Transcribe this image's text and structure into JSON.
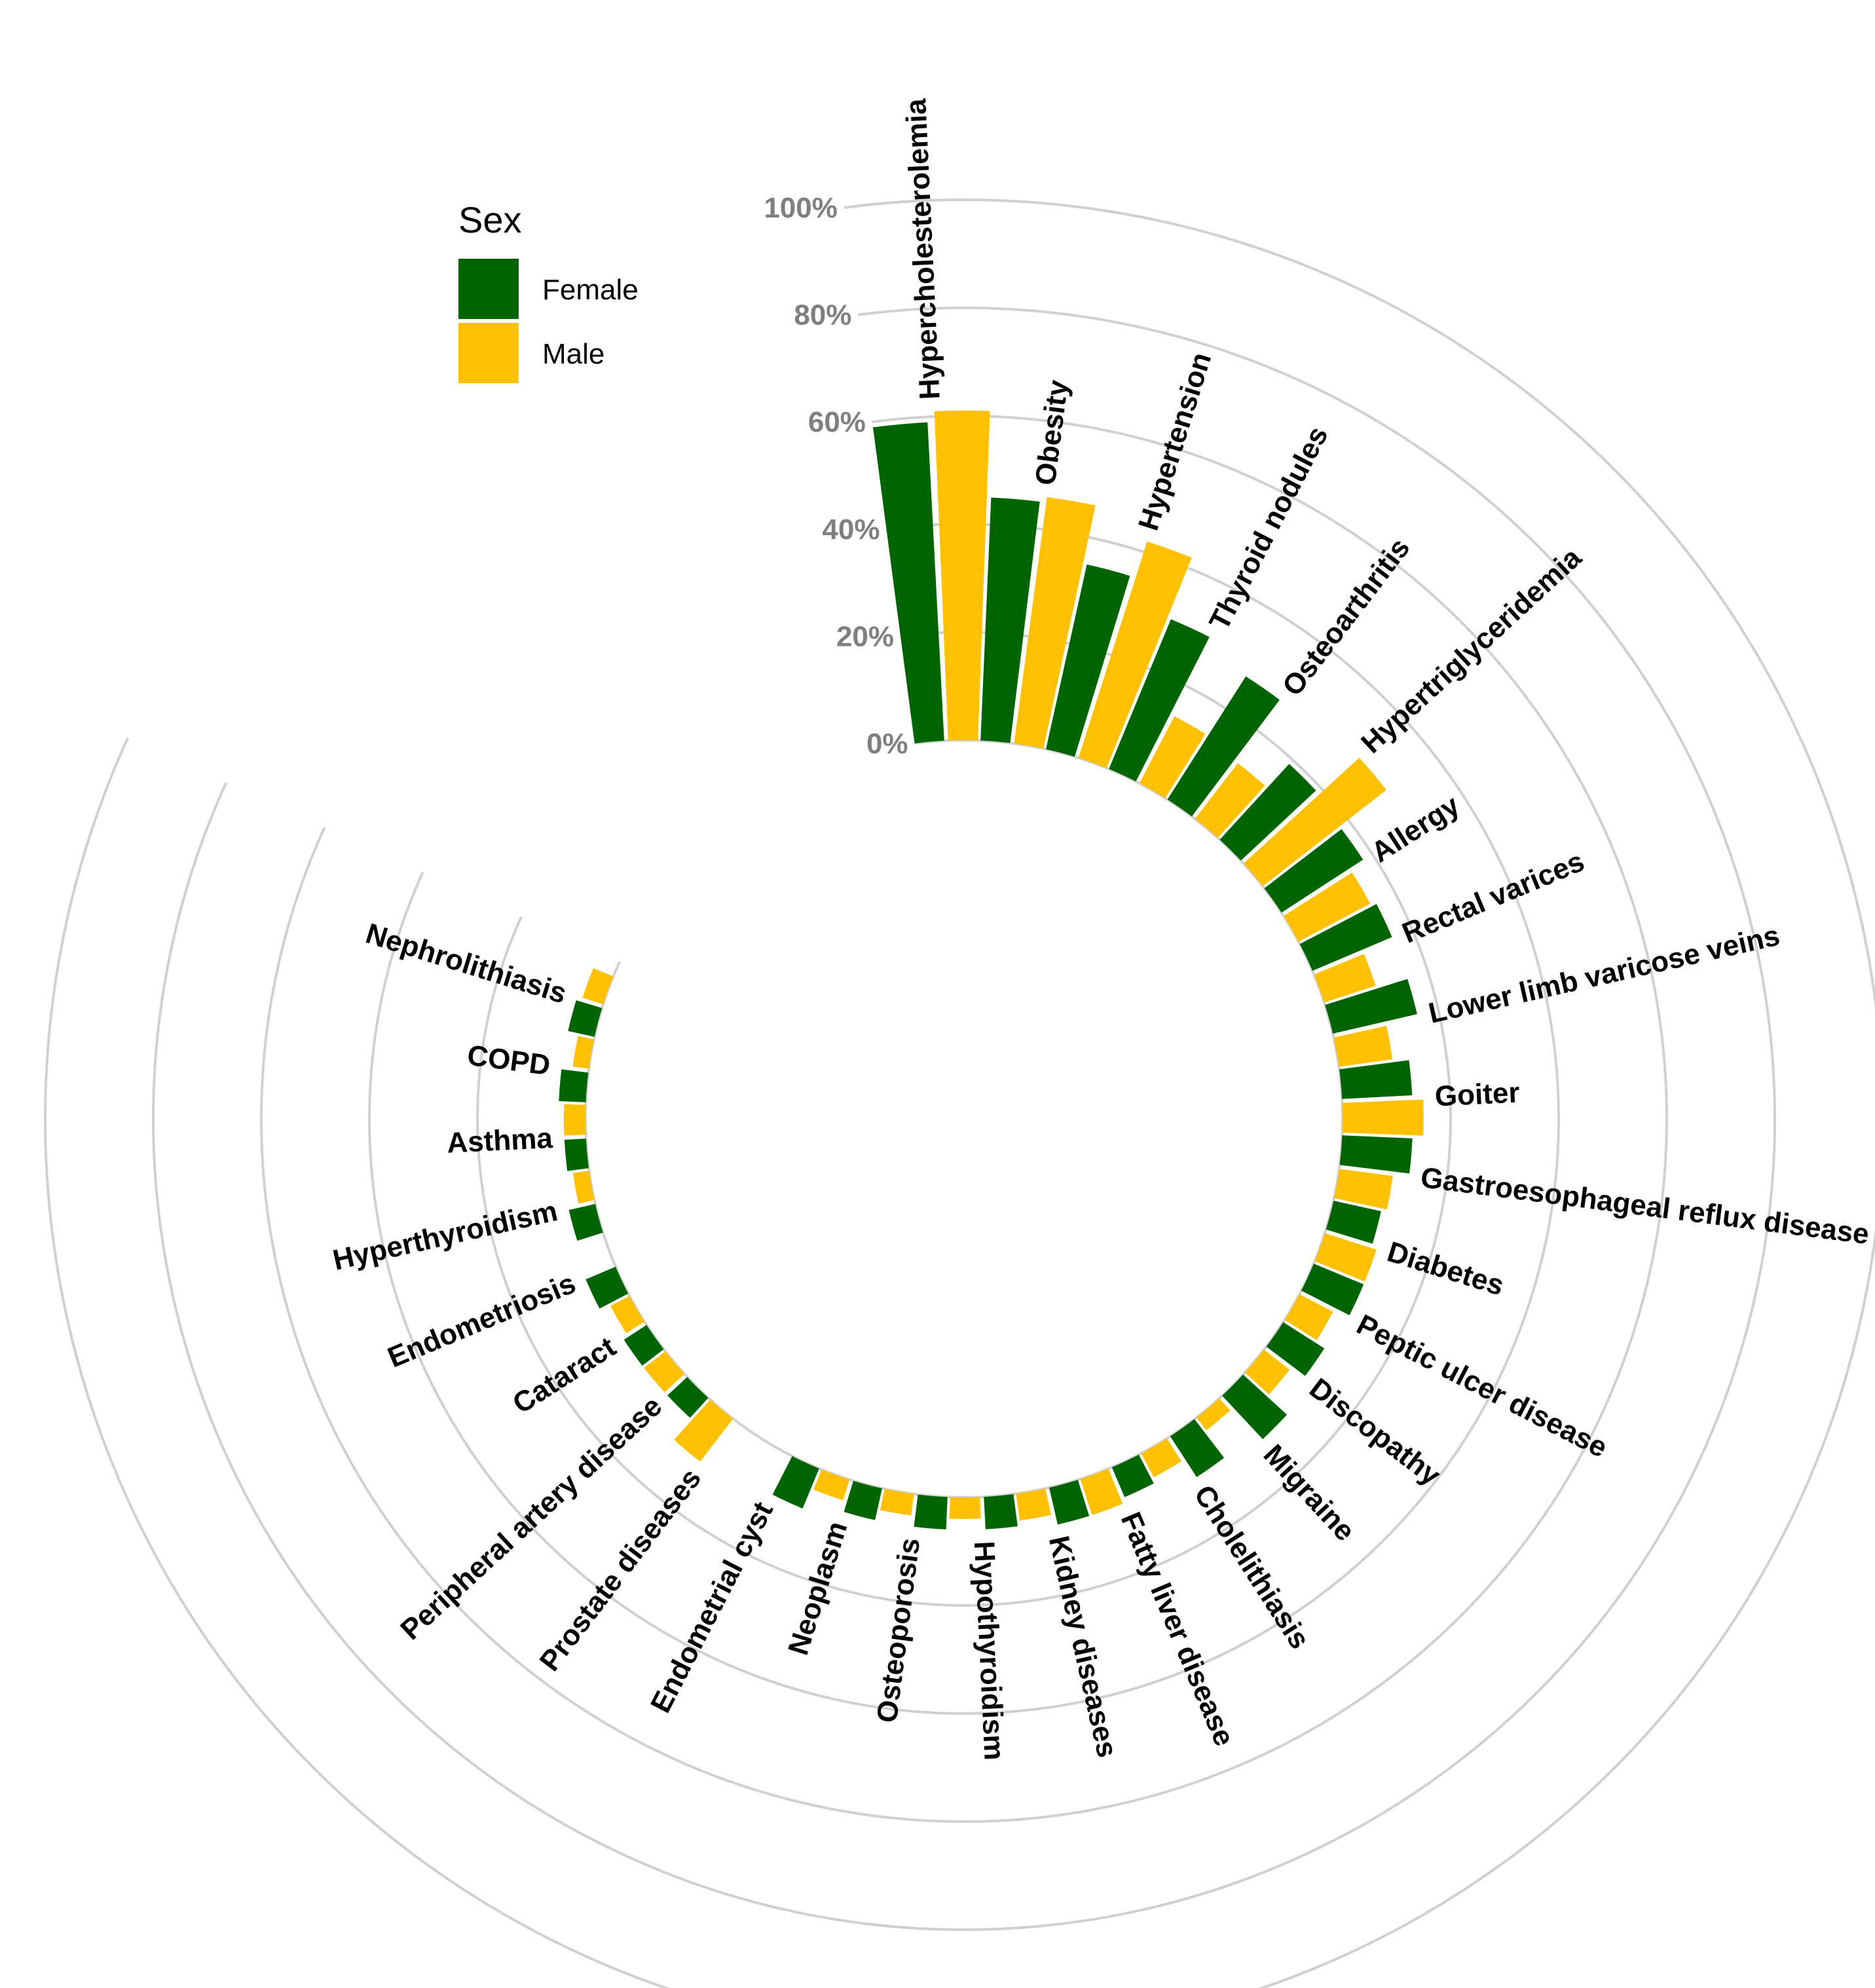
{
  "chart_data": {
    "type": "bar",
    "coordinate_system": "polar",
    "title": "",
    "xlabel": "",
    "ylabel": "",
    "ylim": [
      0,
      100
    ],
    "y_ticks": [
      "0%",
      "20%",
      "40%",
      "60%",
      "80%",
      "100%"
    ],
    "grid": true,
    "legend": {
      "title": "Sex",
      "position": "top-left"
    },
    "categories": [
      "Hypercholesterolemia",
      "Obesity",
      "Hypertension",
      "Thyroid nodules",
      "Osteoarthritis",
      "Hypertriglyceridemia",
      "Allergy",
      "Rectal varices",
      "Lower limb varicose veins",
      "Goiter",
      "Gastroesophageal reflux disease",
      "Diabetes",
      "Peptic ulcer disease",
      "Discopathy",
      "Migraine",
      "Cholelithiasis",
      "Fatty liver disease",
      "Kidney diseases",
      "Hypothyroidism",
      "Osteoporosis",
      "Neoplasm",
      "Endometrial cyst",
      "Prostate diseases",
      "Peripheral artery disease",
      "Cataract",
      "Endometriosis",
      "Hyperthyroidism",
      "Asthma",
      "COPD",
      "Nephrolithiasis"
    ],
    "series": [
      {
        "name": "Female",
        "color": "#006400",
        "values": [
          59,
          45,
          35,
          30,
          27,
          19,
          18,
          16,
          16,
          13,
          13,
          9,
          10,
          9,
          11,
          9,
          6,
          7,
          6,
          6,
          6,
          8,
          0,
          5,
          5,
          6,
          5,
          4,
          5,
          5
        ]
      },
      {
        "name": "Male",
        "color": "#FFC000",
        "values": [
          61,
          46,
          42,
          14,
          13,
          29,
          15,
          10,
          10,
          15,
          10,
          10,
          7,
          6,
          3,
          5,
          7,
          5,
          4,
          4,
          4,
          0,
          10,
          5,
          4,
          0,
          3,
          4,
          3,
          4
        ]
      }
    ]
  }
}
